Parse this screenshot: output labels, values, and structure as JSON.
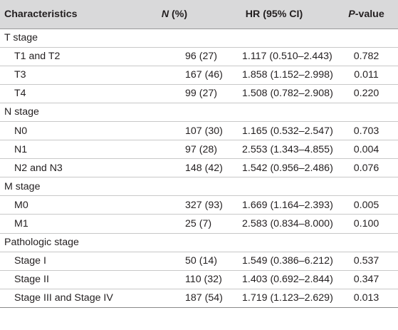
{
  "table": {
    "headers": {
      "characteristics": "Characteristics",
      "n_italic": "N",
      "n_rest": " (%)",
      "hr": "HR (95% CI)",
      "p_italic": "P",
      "p_rest": "-value"
    },
    "rows": [
      {
        "type": "group",
        "label": "T stage"
      },
      {
        "type": "item",
        "label": "T1 and T2",
        "n": "96 (27)",
        "hr": "1.117 (0.510–2.443)",
        "p": "0.782"
      },
      {
        "type": "item",
        "label": "T3",
        "n": "167 (46)",
        "hr": "1.858 (1.152–2.998)",
        "p": "0.011"
      },
      {
        "type": "item",
        "label": "T4",
        "n": "99 (27)",
        "hr": "1.508 (0.782–2.908)",
        "p": "0.220"
      },
      {
        "type": "group",
        "label": "N stage"
      },
      {
        "type": "item",
        "label": "N0",
        "n": "107 (30)",
        "hr": "1.165 (0.532–2.547)",
        "p": "0.703"
      },
      {
        "type": "item",
        "label": "N1",
        "n": "97 (28)",
        "hr": "2.553 (1.343–4.855)",
        "p": "0.004"
      },
      {
        "type": "item",
        "label": "N2 and N3",
        "n": "148 (42)",
        "hr": "1.542 (0.956–2.486)",
        "p": "0.076"
      },
      {
        "type": "group",
        "label": "M stage"
      },
      {
        "type": "item",
        "label": "M0",
        "n": "327 (93)",
        "hr": "1.669 (1.164–2.393)",
        "p": "0.005"
      },
      {
        "type": "item",
        "label": "M1",
        "n": "25 (7)",
        "hr": "2.583 (0.834–8.000)",
        "p": "0.100"
      },
      {
        "type": "group",
        "label": "Pathologic stage"
      },
      {
        "type": "item",
        "label": "Stage I",
        "n": "50 (14)",
        "hr": "1.549 (0.386–6.212)",
        "p": "0.537"
      },
      {
        "type": "item",
        "label": "Stage II",
        "n": "110 (32)",
        "hr": "1.403 (0.692–2.844)",
        "p": "0.347"
      },
      {
        "type": "item",
        "label": "Stage III and Stage IV",
        "n": "187 (54)",
        "hr": "1.719 (1.123–2.629)",
        "p": "0.013"
      }
    ]
  }
}
